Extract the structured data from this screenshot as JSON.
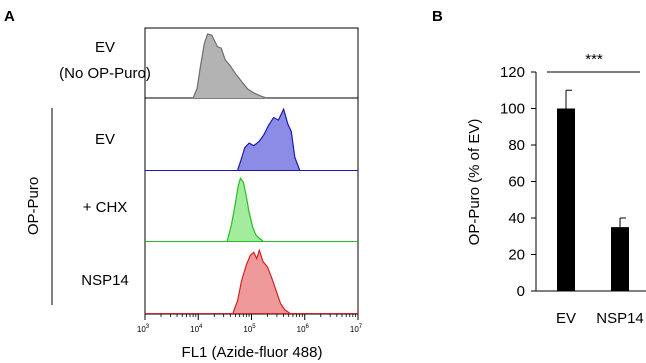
{
  "panels": {
    "a": "A",
    "b": "B"
  },
  "chart_data": [
    {
      "type": "area",
      "subtype": "flow-cytometry-histograms",
      "xlabel": "FL1 (Azide-fluor 488)",
      "xscale": "log",
      "xlim": [
        1000,
        10000000
      ],
      "x_ticks": [
        {
          "base": "10",
          "exp": "3"
        },
        {
          "base": "10",
          "exp": "4"
        },
        {
          "base": "10",
          "exp": "5"
        },
        {
          "base": "10",
          "exp": "6"
        },
        {
          "base": "10",
          "exp": "7"
        }
      ],
      "group_label": "OP-Puro",
      "series": [
        {
          "name": "EV",
          "name2": "(No OP-Puro)",
          "fill": "#b3b3b3",
          "stroke": "#6e6e6e",
          "x": [
            8000,
            9500,
            11000,
            13000,
            15000,
            18000,
            20000,
            23000,
            27000,
            32000,
            40000,
            50000,
            65000,
            85000,
            110000,
            150000,
            190000
          ],
          "y": [
            0.0,
            0.15,
            0.5,
            0.85,
            1.0,
            0.98,
            0.9,
            0.8,
            0.78,
            0.6,
            0.5,
            0.38,
            0.26,
            0.14,
            0.08,
            0.03,
            0.0
          ]
        },
        {
          "name": "EV",
          "fill": "#8c8ce6",
          "stroke": "#1a1ab3",
          "x": [
            55000,
            65000,
            75000,
            90000,
            110000,
            140000,
            170000,
            210000,
            260000,
            320000,
            400000,
            480000,
            560000,
            650000,
            800000
          ],
          "y": [
            0.0,
            0.18,
            0.35,
            0.42,
            0.38,
            0.45,
            0.55,
            0.7,
            0.82,
            0.78,
            0.95,
            0.72,
            0.6,
            0.2,
            0.0
          ]
        },
        {
          "name": "+ CHX",
          "fill": "#a3ec9e",
          "stroke": "#22c022",
          "x": [
            35000,
            42000,
            50000,
            56000,
            62000,
            70000,
            80000,
            90000,
            105000,
            120000,
            140000,
            165000
          ],
          "y": [
            0.0,
            0.25,
            0.6,
            0.85,
            0.98,
            0.92,
            0.7,
            0.45,
            0.22,
            0.1,
            0.04,
            0.0
          ]
        },
        {
          "name": "NSP14",
          "fill": "#ef9a9a",
          "stroke": "#d42020",
          "x": [
            45000,
            55000,
            65000,
            80000,
            95000,
            110000,
            125000,
            140000,
            165000,
            200000,
            240000,
            290000,
            350000,
            420000,
            520000
          ],
          "y": [
            0.0,
            0.2,
            0.5,
            0.75,
            0.9,
            0.95,
            0.85,
            0.98,
            0.8,
            0.72,
            0.55,
            0.35,
            0.15,
            0.05,
            0.0
          ]
        }
      ]
    },
    {
      "type": "bar",
      "categories": [
        "EV",
        "NSP14"
      ],
      "values": [
        100,
        35
      ],
      "errors": [
        10,
        5
      ],
      "ylabel": "OP-Puro (% of EV)",
      "ylim": [
        0,
        120
      ],
      "yticks": [
        0,
        20,
        40,
        60,
        80,
        100,
        120
      ],
      "significance": "***",
      "bar_color": "#000000"
    }
  ]
}
